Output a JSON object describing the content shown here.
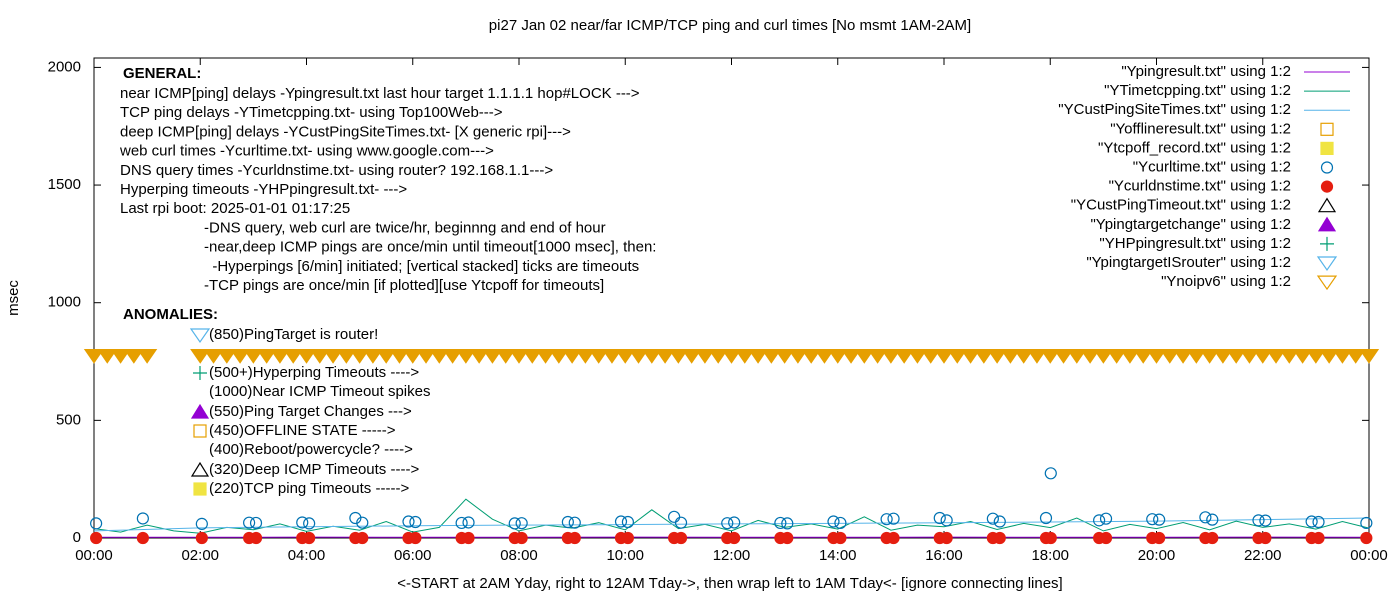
{
  "chart_data": {
    "type": "line",
    "title": "pi27 Jan 02  near/far ICMP/TCP ping and curl times [No msmt 1AM-2AM]",
    "x_label": "<-START at 2AM Yday, right to 12AM Tday->, then wrap left to 1AM Tday<- [ignore connecting lines]",
    "y_label": "msec",
    "xlim": [
      0,
      24
    ],
    "ylim": [
      0,
      2040
    ],
    "xticks": [
      {
        "value": 0,
        "label": "00:00"
      },
      {
        "value": 2,
        "label": "02:00"
      },
      {
        "value": 4,
        "label": "04:00"
      },
      {
        "value": 6,
        "label": "06:00"
      },
      {
        "value": 8,
        "label": "08:00"
      },
      {
        "value": 10,
        "label": "10:00"
      },
      {
        "value": 12,
        "label": "12:00"
      },
      {
        "value": 14,
        "label": "14:00"
      },
      {
        "value": 16,
        "label": "16:00"
      },
      {
        "value": 18,
        "label": "18:00"
      },
      {
        "value": 20,
        "label": "20:00"
      },
      {
        "value": 22,
        "label": "22:00"
      },
      {
        "value": 24,
        "label": "00:00"
      }
    ],
    "yticks": [
      0,
      500,
      1000,
      1500,
      2000
    ],
    "legend": "top right",
    "annotations": {
      "general": {
        "heading": "GENERAL:",
        "lines": [
          "near ICMP[ping] delays -Ypingresult.txt last hour target 1.1.1.1 hop#LOCK --->",
          "TCP ping delays -YTimetcpping.txt- using Top100Web--->",
          "deep ICMP[ping] delays -YCustPingSiteTimes.txt- [X generic rpi]--->",
          "web curl times -Ycurltime.txt- using www.google.com--->",
          "DNS query times -Ycurldnstime.txt- using router? 192.168.1.1--->",
          "Hyperping timeouts -YHPpingresult.txt- --->",
          "Last rpi boot: 2025-01-01 01:17:25",
          "-DNS query, web curl are twice/hr, beginnng and end of hour",
          "-near,deep ICMP pings are once/min until timeout[1000 msec], then:",
          "  -Hyperpings [6/min] initiated; [vertical stacked] ticks are timeouts",
          "-TCP pings are once/min [if plotted][use Ytcpoff for timeouts]"
        ]
      },
      "anomalies": {
        "heading": "ANOMALIES:",
        "lines": [
          "(850)PingTarget is router!",
          "(500+)Hyperping Timeouts ---->",
          "(1000)Near ICMP Timeout spikes",
          "(550)Ping Target Changes --->",
          "(450)OFFLINE STATE ----->",
          "(400)Reboot/powercycle? ---->",
          "(320)Deep ICMP Timeouts ---->",
          "(220)TCP ping Timeouts ----->"
        ]
      }
    },
    "series": [
      {
        "name": "\"Ypingresult.txt\" using 1:2",
        "color": "#9400d3",
        "style": "line",
        "x": [
          0,
          2,
          4,
          6,
          8,
          10,
          12,
          14,
          16,
          18,
          20,
          22,
          24
        ],
        "values": [
          3,
          3,
          4,
          3,
          3,
          4,
          3,
          3,
          4,
          3,
          3,
          4,
          3
        ]
      },
      {
        "name": "\"YTimetcpping.txt\" using 1:2",
        "color": "#009e73",
        "style": "line",
        "x": [
          0,
          0.5,
          1,
          1.5,
          2,
          2.5,
          3,
          3.5,
          4,
          4.5,
          5,
          5.5,
          6,
          6.5,
          7,
          7.5,
          8,
          8.5,
          9,
          9.5,
          10,
          10.5,
          11,
          11.5,
          12,
          12.5,
          13,
          13.5,
          14,
          14.5,
          15,
          15.5,
          16,
          16.5,
          17,
          17.5,
          18,
          18.5,
          19,
          19.5,
          20,
          20.5,
          21,
          21.5,
          22,
          22.5,
          23,
          23.5,
          24
        ],
        "values": [
          40,
          25,
          55,
          30,
          20,
          45,
          35,
          60,
          28,
          50,
          33,
          70,
          25,
          45,
          165,
          80,
          30,
          55,
          42,
          65,
          35,
          120,
          40,
          58,
          30,
          75,
          45,
          60,
          38,
          90,
          33,
          55,
          48,
          70,
          36,
          62,
          44,
          85,
          30,
          58,
          40,
          66,
          35,
          72,
          45,
          60,
          38,
          70,
          42
        ]
      },
      {
        "name": "\"YCustPingSiteTimes.txt\" using 1:2",
        "color": "#56b4e9",
        "style": "line",
        "x": [
          0,
          2,
          4,
          6,
          8,
          10,
          12,
          14,
          16,
          18,
          20,
          22,
          24
        ],
        "values": [
          30,
          43,
          48,
          52,
          55,
          57,
          60,
          62,
          65,
          68,
          72,
          78,
          85
        ]
      },
      {
        "name": "\"Yofflineresult.txt\" using 1:2",
        "color": "#e69f00",
        "style": "open-square",
        "x": [],
        "values": []
      },
      {
        "name": "\"Ytcpoff_record.txt\" using 1:2",
        "color": "#f0e442",
        "style": "filled-square",
        "x": [],
        "values": []
      },
      {
        "name": "\"Ycurltime.txt\" using 1:2",
        "color": "#0072b2",
        "style": "open-circle",
        "x": [
          0.04,
          0.92,
          2.03,
          2.92,
          3.05,
          3.92,
          4.05,
          4.92,
          5.05,
          5.92,
          6.05,
          6.92,
          7.05,
          7.92,
          8.05,
          8.92,
          9.05,
          9.92,
          10.05,
          10.92,
          11.05,
          11.92,
          12.05,
          12.92,
          13.05,
          13.92,
          14.05,
          14.92,
          15.05,
          15.92,
          16.05,
          16.92,
          17.05,
          17.92,
          18.01,
          18.92,
          19.05,
          19.92,
          20.05,
          20.92,
          21.05,
          21.92,
          22.05,
          22.92,
          23.05,
          23.95
        ],
        "values": [
          62,
          83,
          60,
          65,
          64,
          66,
          62,
          85,
          65,
          70,
          68,
          64,
          66,
          62,
          63,
          68,
          65,
          70,
          68,
          90,
          65,
          63,
          66,
          64,
          62,
          70,
          64,
          80,
          82,
          85,
          75,
          82,
          70,
          85,
          275,
          75,
          82,
          80,
          78,
          88,
          78,
          75,
          74,
          70,
          68,
          64
        ]
      },
      {
        "name": "\"Ycurldnstime.txt\" using 1:2",
        "color": "#e51e10",
        "style": "filled-circle",
        "x": [
          0.04,
          0.92,
          2.03,
          2.92,
          3.05,
          3.92,
          4.05,
          4.92,
          5.05,
          5.92,
          6.05,
          6.92,
          7.05,
          7.92,
          8.05,
          8.92,
          9.05,
          9.92,
          10.05,
          10.92,
          11.05,
          11.92,
          12.05,
          12.92,
          13.05,
          13.92,
          14.05,
          14.92,
          15.05,
          15.92,
          16.05,
          16.92,
          17.05,
          17.92,
          18.01,
          18.92,
          19.05,
          19.92,
          20.05,
          20.92,
          21.05,
          21.92,
          22.05,
          22.92,
          23.05,
          23.95
        ],
        "values": [
          0,
          0,
          0,
          0,
          0,
          0,
          0,
          0,
          0,
          0,
          0,
          0,
          0,
          0,
          0,
          0,
          0,
          0,
          0,
          0,
          0,
          0,
          0,
          0,
          0,
          0,
          0,
          0,
          0,
          0,
          0,
          0,
          0,
          0,
          0,
          0,
          0,
          0,
          0,
          0,
          0,
          0,
          0,
          0,
          0,
          0
        ]
      },
      {
        "name": "\"YCustPingTimeout.txt\" using 1:2",
        "color": "#000000",
        "style": "open-triangle",
        "x": [],
        "values": []
      },
      {
        "name": "\"Ypingtargetchange\" using 1:2",
        "color": "#9400d3",
        "style": "filled-triangle",
        "x": [],
        "values": []
      },
      {
        "name": "\"YHPpingresult.txt\" using 1:2",
        "color": "#009e73",
        "style": "plus",
        "x": [],
        "values": []
      },
      {
        "name": "\"YpingtargetISrouter\" using 1:2",
        "color": "#56b4e9",
        "style": "open-down-triangle",
        "x": [],
        "values": []
      },
      {
        "name": "\"Ynoipv6\" using 1:2",
        "color": "#e69f00",
        "style": "filled-down-triangle",
        "x": [
          0,
          0.25,
          0.5,
          0.75,
          1,
          2,
          2.25,
          2.5,
          2.75,
          3,
          3.25,
          3.5,
          3.75,
          4,
          4.25,
          4.5,
          4.75,
          5,
          5.25,
          5.5,
          5.75,
          6,
          6.25,
          6.5,
          6.75,
          7,
          7.25,
          7.5,
          7.75,
          8,
          8.25,
          8.5,
          8.75,
          9,
          9.25,
          9.5,
          9.75,
          10,
          10.25,
          10.5,
          10.75,
          11,
          11.25,
          11.5,
          11.75,
          12,
          12.25,
          12.5,
          12.75,
          13,
          13.25,
          13.5,
          13.75,
          14,
          14.25,
          14.5,
          14.75,
          15,
          15.25,
          15.5,
          15.75,
          16,
          16.25,
          16.5,
          16.75,
          17,
          17.25,
          17.5,
          17.75,
          18,
          18.25,
          18.5,
          18.75,
          19,
          19.25,
          19.5,
          19.75,
          20,
          20.25,
          20.5,
          20.75,
          21,
          21.25,
          21.5,
          21.75,
          22,
          22.25,
          22.5,
          22.75,
          23,
          23.25,
          23.5,
          23.75,
          24
        ],
        "values": [
          775,
          775,
          775,
          775,
          775,
          775,
          775,
          775,
          775,
          775,
          775,
          775,
          775,
          775,
          775,
          775,
          775,
          775,
          775,
          775,
          775,
          775,
          775,
          775,
          775,
          775,
          775,
          775,
          775,
          775,
          775,
          775,
          775,
          775,
          775,
          775,
          775,
          775,
          775,
          775,
          775,
          775,
          775,
          775,
          775,
          775,
          775,
          775,
          775,
          775,
          775,
          775,
          775,
          775,
          775,
          775,
          775,
          775,
          775,
          775,
          775,
          775,
          775,
          775,
          775,
          775,
          775,
          775,
          775,
          775,
          775,
          775,
          775,
          775,
          775,
          775,
          775,
          775,
          775,
          775,
          775,
          775,
          775,
          775,
          775,
          775,
          775,
          775,
          775,
          775,
          775,
          775,
          775,
          775
        ]
      }
    ]
  }
}
